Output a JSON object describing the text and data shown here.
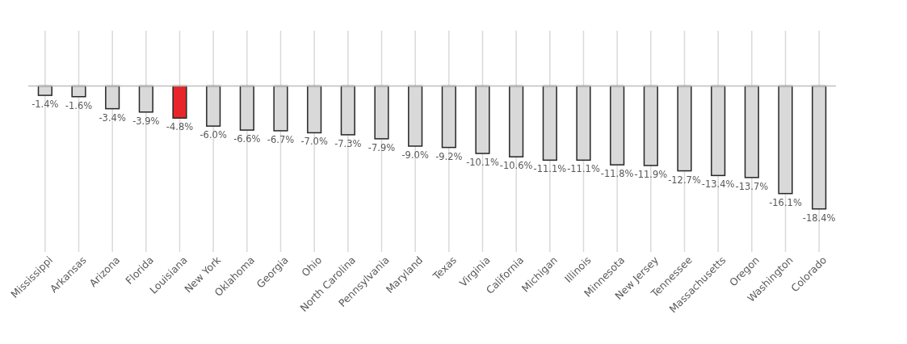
{
  "chart_data": {
    "type": "bar",
    "categories": [
      "Mississippi",
      "Arkansas",
      "Arizona",
      "Florida",
      "Louisiana",
      "New York",
      "Oklahoma",
      "Georgia",
      "Ohio",
      "North Carolina",
      "Pennsylvania",
      "Maryland",
      "Texas",
      "Virginia",
      "California",
      "Michigan",
      "Illinois",
      "Minnesota",
      "New Jersey",
      "Tennessee",
      "Massachusetts",
      "Oregon",
      "Washington",
      "Colorado"
    ],
    "values": [
      -1.4,
      -1.6,
      -3.4,
      -3.9,
      -4.8,
      -6.0,
      -6.6,
      -6.7,
      -7.0,
      -7.3,
      -7.9,
      -9.0,
      -9.2,
      -10.1,
      -10.6,
      -11.1,
      -11.1,
      -11.8,
      -11.9,
      -12.7,
      -13.4,
      -13.7,
      -16.1,
      -18.4
    ],
    "value_labels": [
      "-1.4%",
      "-1.6%",
      "-3.4%",
      "-3.9%",
      "-4.8%",
      "-6.0%",
      "-6.6%",
      "-6.7%",
      "-7.0%",
      "-7.3%",
      "-7.9%",
      "-9.0%",
      "-9.2%",
      "-10.1%",
      "-10.6%",
      "-11.1%",
      "-11.1%",
      "-11.8%",
      "-11.9%",
      "-12.7%",
      "-13.4%",
      "-13.7%",
      "-16.1%",
      "-18.4%"
    ],
    "colors": [
      "#d9d9d9",
      "#d9d9d9",
      "#d9d9d9",
      "#d9d9d9",
      "#e8262a",
      "#d9d9d9",
      "#d9d9d9",
      "#d9d9d9",
      "#d9d9d9",
      "#d9d9d9",
      "#d9d9d9",
      "#d9d9d9",
      "#d9d9d9",
      "#d9d9d9",
      "#d9d9d9",
      "#d9d9d9",
      "#d9d9d9",
      "#d9d9d9",
      "#d9d9d9",
      "#d9d9d9",
      "#d9d9d9",
      "#d9d9d9",
      "#d9d9d9",
      "#d9d9d9"
    ],
    "grid": "x",
    "tick_labels": "x"
  }
}
